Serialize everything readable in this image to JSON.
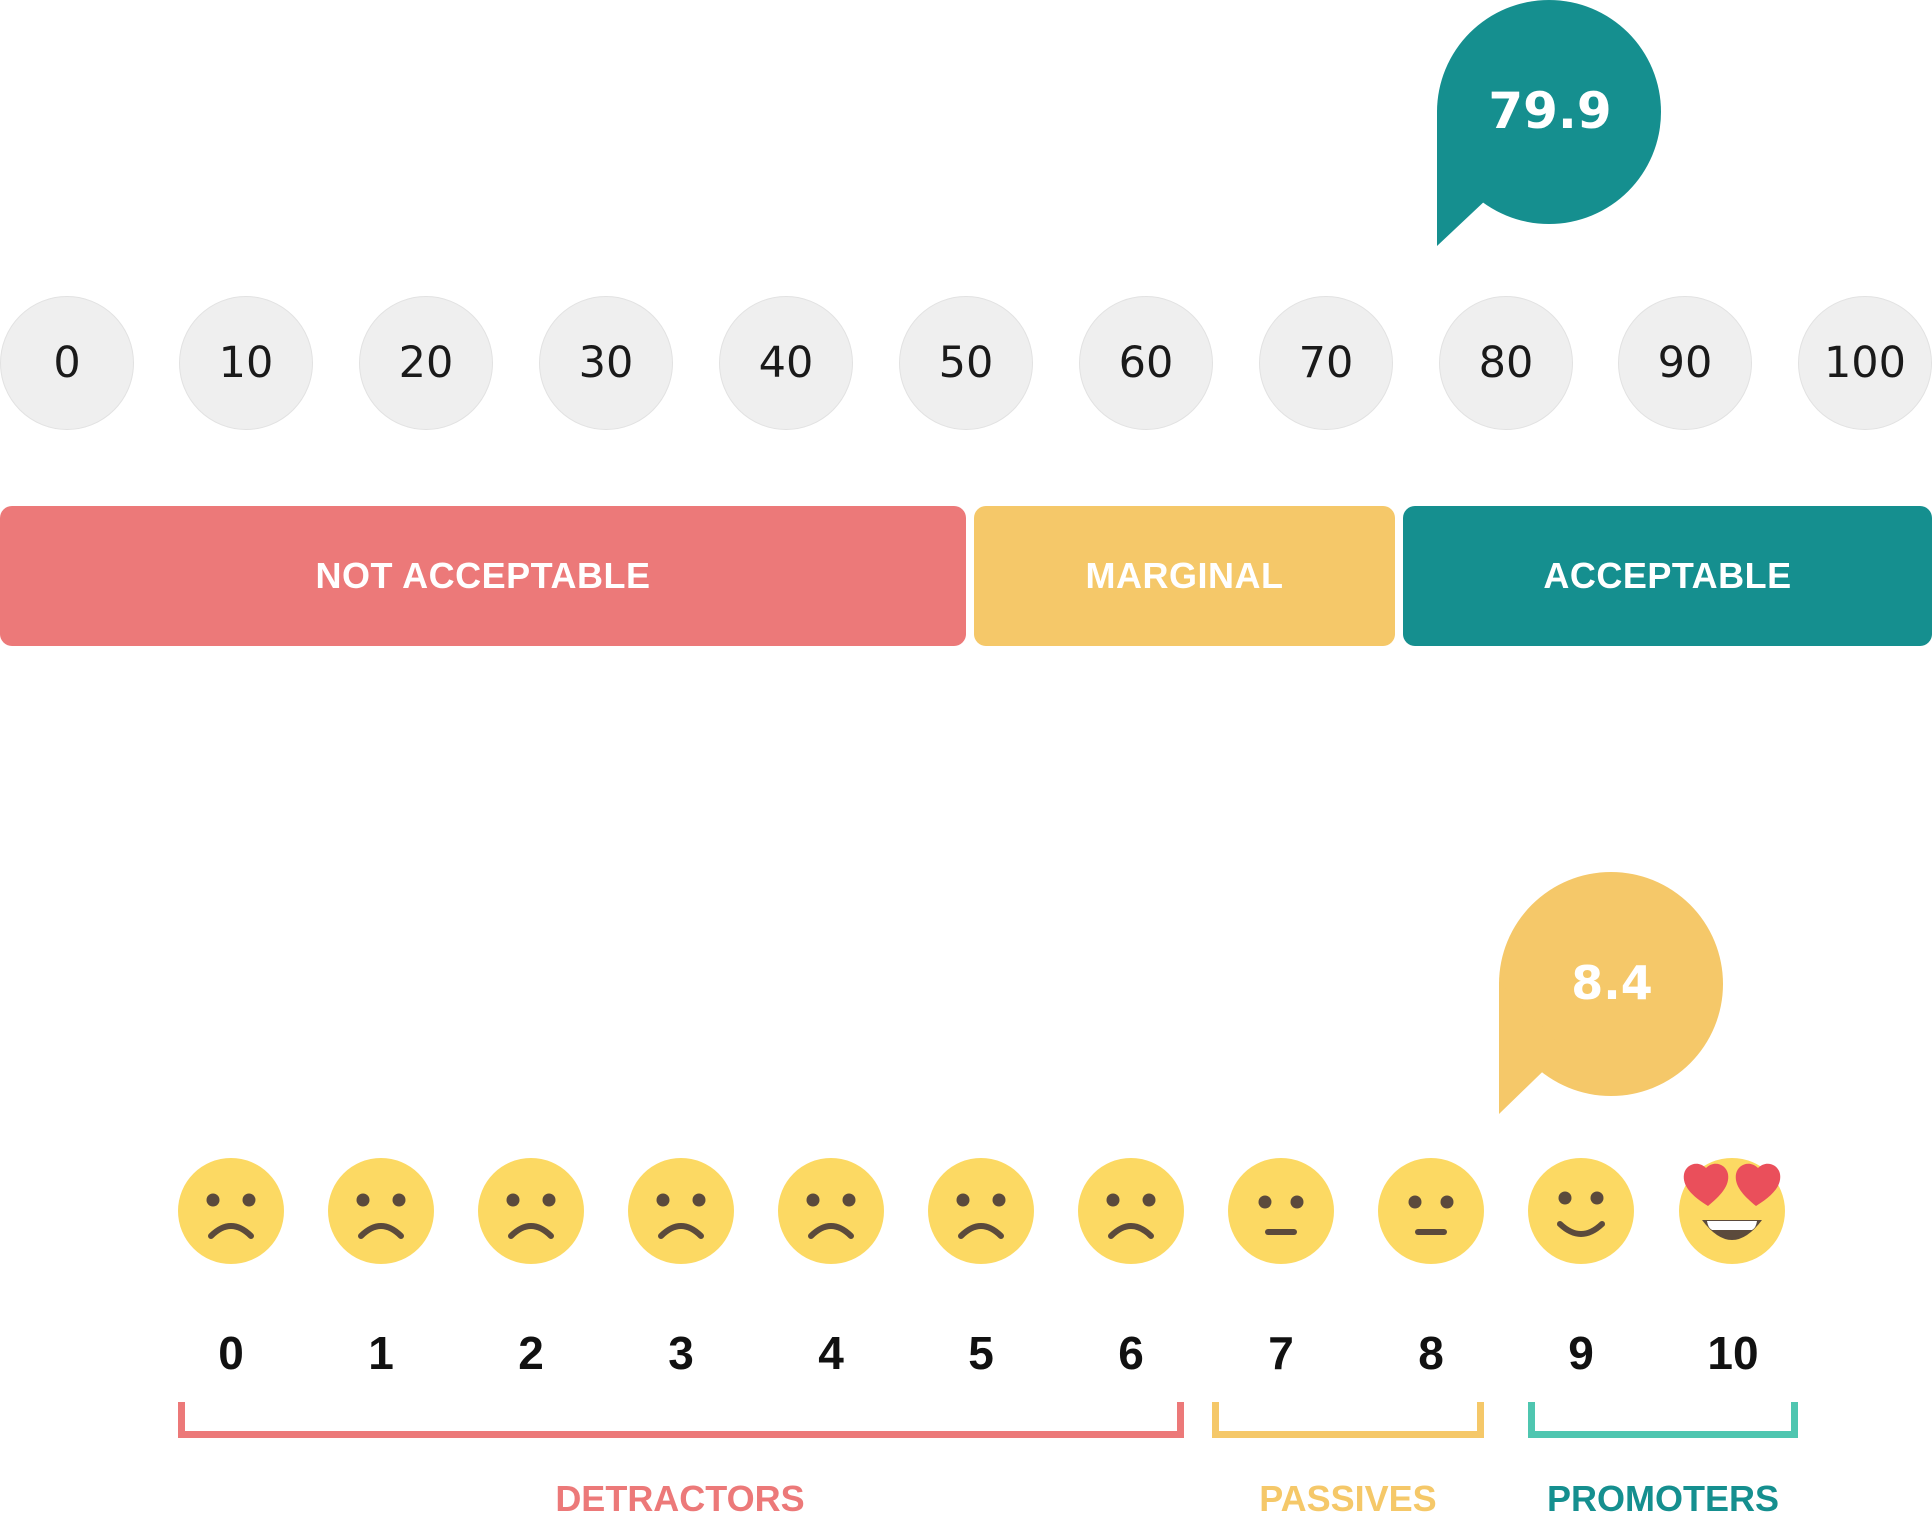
{
  "sus": {
    "score": "79.9",
    "scale": [
      "0",
      "10",
      "20",
      "30",
      "40",
      "50",
      "60",
      "70",
      "80",
      "90",
      "100"
    ],
    "ranges": [
      {
        "label": "NOT ACCEPTABLE",
        "color": "#ec7979"
      },
      {
        "label": "MARGINAL",
        "color": "#f5c869"
      },
      {
        "label": "ACCEPTABLE",
        "color": "#158f8f"
      }
    ],
    "bubble_color": "#158f8f"
  },
  "nps": {
    "score": "8.4",
    "bubble_color": "#f5c869",
    "scale": [
      "0",
      "1",
      "2",
      "3",
      "4",
      "5",
      "6",
      "7",
      "8",
      "9",
      "10"
    ],
    "faces": [
      "frown-icon",
      "frown-icon",
      "frown-icon",
      "frown-icon",
      "frown-icon",
      "frown-icon",
      "frown-icon",
      "neutral-icon",
      "neutral-icon",
      "smile-icon",
      "heart-eyes-icon"
    ],
    "groups": [
      {
        "label": "DETRACTORS",
        "color": "#ec7979"
      },
      {
        "label": "PASSIVES",
        "color": "#f5c869"
      },
      {
        "label": "PROMOTERS",
        "color": "#4fc6b0",
        "text_color": "#158f8f"
      }
    ]
  }
}
